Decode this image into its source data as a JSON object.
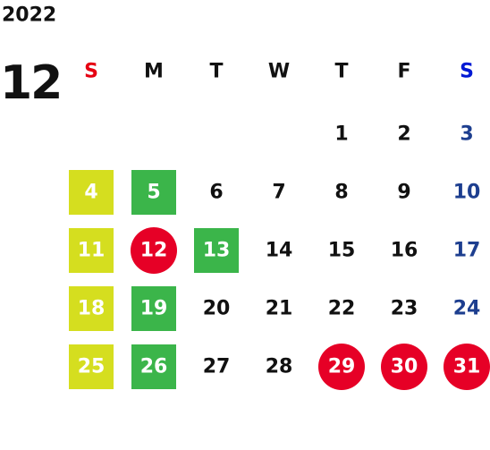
{
  "calendar": {
    "year": "2022",
    "month": "12",
    "weekdays": [
      "S",
      "M",
      "T",
      "W",
      "T",
      "F",
      "S"
    ],
    "weekday_colors": [
      "#e60012",
      "#111111",
      "#111111",
      "#111111",
      "#111111",
      "#111111",
      "#0019d4"
    ],
    "day_colors": [
      "#111111",
      "#111111",
      "#111111",
      "#111111",
      "#111111",
      "#111111",
      "#1d3e8f"
    ],
    "highlight_text_color": "#ffffff",
    "weeks": [
      [
        null,
        null,
        null,
        null,
        {
          "day": 1
        },
        {
          "day": 2
        },
        {
          "day": 3
        }
      ],
      [
        {
          "day": 4,
          "bg": "#d5de1f",
          "shape": "square"
        },
        {
          "day": 5,
          "bg": "#3bb54a",
          "shape": "square"
        },
        {
          "day": 6
        },
        {
          "day": 7
        },
        {
          "day": 8
        },
        {
          "day": 9
        },
        {
          "day": 10
        }
      ],
      [
        {
          "day": 11,
          "bg": "#d5de1f",
          "shape": "square"
        },
        {
          "day": 12,
          "bg": "#e60026",
          "shape": "circle"
        },
        {
          "day": 13,
          "bg": "#3bb54a",
          "shape": "square"
        },
        {
          "day": 14
        },
        {
          "day": 15
        },
        {
          "day": 16
        },
        {
          "day": 17
        }
      ],
      [
        {
          "day": 18,
          "bg": "#d5de1f",
          "shape": "square"
        },
        {
          "day": 19,
          "bg": "#3bb54a",
          "shape": "square"
        },
        {
          "day": 20
        },
        {
          "day": 21
        },
        {
          "day": 22
        },
        {
          "day": 23
        },
        {
          "day": 24
        }
      ],
      [
        {
          "day": 25,
          "bg": "#d5de1f",
          "shape": "square"
        },
        {
          "day": 26,
          "bg": "#3bb54a",
          "shape": "square"
        },
        {
          "day": 27
        },
        {
          "day": 28
        },
        {
          "day": 29,
          "bg": "#e60026",
          "shape": "circle"
        },
        {
          "day": 30,
          "bg": "#e60026",
          "shape": "circle"
        },
        {
          "day": 31,
          "bg": "#e60026",
          "shape": "circle"
        }
      ]
    ]
  }
}
